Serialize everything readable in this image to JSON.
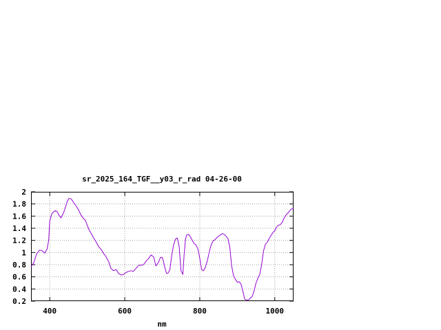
{
  "chart_data": {
    "type": "line",
    "title": "sr_2025_164_TGF__y03_r_rad 04-26-00",
    "xlabel": "nm",
    "ylabel": "",
    "xlim": [
      350,
      1050
    ],
    "ylim": [
      0.2,
      2
    ],
    "x_ticks": [
      400,
      600,
      800,
      1000
    ],
    "x_tick_labels": [
      "400",
      "600",
      "800",
      "1000"
    ],
    "y_ticks": [
      0.2,
      0.4,
      0.6,
      0.8,
      1,
      1.2,
      1.4,
      1.6,
      1.8,
      2
    ],
    "y_tick_labels": [
      "0.2",
      "0.4",
      "0.6",
      "0.8",
      "1",
      "1.2",
      "1.4",
      "1.6",
      "1.8",
      "2"
    ],
    "grid": true,
    "legend": "none",
    "series_color": "#9400d3",
    "series": [
      {
        "x": [
          350,
          357,
          365,
          373,
          380,
          387,
          393,
          397,
          400,
          405,
          410,
          415,
          420,
          425,
          430,
          437,
          443,
          447,
          451,
          455,
          460,
          465,
          470,
          477,
          483,
          490,
          495,
          500,
          505,
          510,
          517,
          523,
          530,
          537,
          543,
          550,
          557,
          563,
          570,
          577,
          583,
          590,
          597,
          603,
          610,
          617,
          623,
          630,
          637,
          643,
          650,
          657,
          663,
          670,
          677,
          683,
          690,
          695,
          700,
          703,
          707,
          711,
          715,
          720,
          725,
          730,
          735,
          740,
          745,
          750,
          755,
          758,
          762,
          765,
          770,
          775,
          780,
          785,
          790,
          795,
          800,
          805,
          810,
          815,
          820,
          825,
          830,
          835,
          840,
          845,
          850,
          855,
          860,
          865,
          870,
          875,
          880,
          885,
          890,
          895,
          900,
          905,
          910,
          915,
          920,
          925,
          930,
          935,
          940,
          945,
          950,
          955,
          960,
          965,
          970,
          975,
          980,
          985,
          990,
          995,
          1000,
          1005,
          1010,
          1015,
          1020,
          1025,
          1030,
          1035,
          1040,
          1045,
          1050
        ],
        "y": [
          0.77,
          0.83,
          0.98,
          1.04,
          1.03,
          0.99,
          1.06,
          1.2,
          1.52,
          1.63,
          1.67,
          1.69,
          1.67,
          1.61,
          1.57,
          1.66,
          1.77,
          1.85,
          1.89,
          1.89,
          1.86,
          1.81,
          1.77,
          1.7,
          1.62,
          1.56,
          1.53,
          1.45,
          1.37,
          1.32,
          1.24,
          1.18,
          1.1,
          1.05,
          0.99,
          0.93,
          0.85,
          0.74,
          0.7,
          0.72,
          0.66,
          0.63,
          0.64,
          0.67,
          0.69,
          0.7,
          0.69,
          0.74,
          0.79,
          0.79,
          0.8,
          0.86,
          0.9,
          0.96,
          0.93,
          0.78,
          0.84,
          0.92,
          0.92,
          0.86,
          0.75,
          0.66,
          0.66,
          0.71,
          0.94,
          1.12,
          1.22,
          1.24,
          1.1,
          0.7,
          0.64,
          0.95,
          1.22,
          1.29,
          1.3,
          1.26,
          1.2,
          1.15,
          1.12,
          1.06,
          0.91,
          0.72,
          0.7,
          0.76,
          0.86,
          1.0,
          1.12,
          1.19,
          1.21,
          1.24,
          1.27,
          1.29,
          1.31,
          1.3,
          1.27,
          1.23,
          1.09,
          0.78,
          0.62,
          0.56,
          0.51,
          0.52,
          0.48,
          0.36,
          0.23,
          0.22,
          0.22,
          0.25,
          0.28,
          0.37,
          0.5,
          0.58,
          0.64,
          0.8,
          1.03,
          1.14,
          1.17,
          1.23,
          1.28,
          1.33,
          1.36,
          1.42,
          1.45,
          1.46,
          1.5,
          1.57,
          1.62,
          1.65,
          1.69,
          1.72,
          1.72
        ]
      }
    ]
  }
}
